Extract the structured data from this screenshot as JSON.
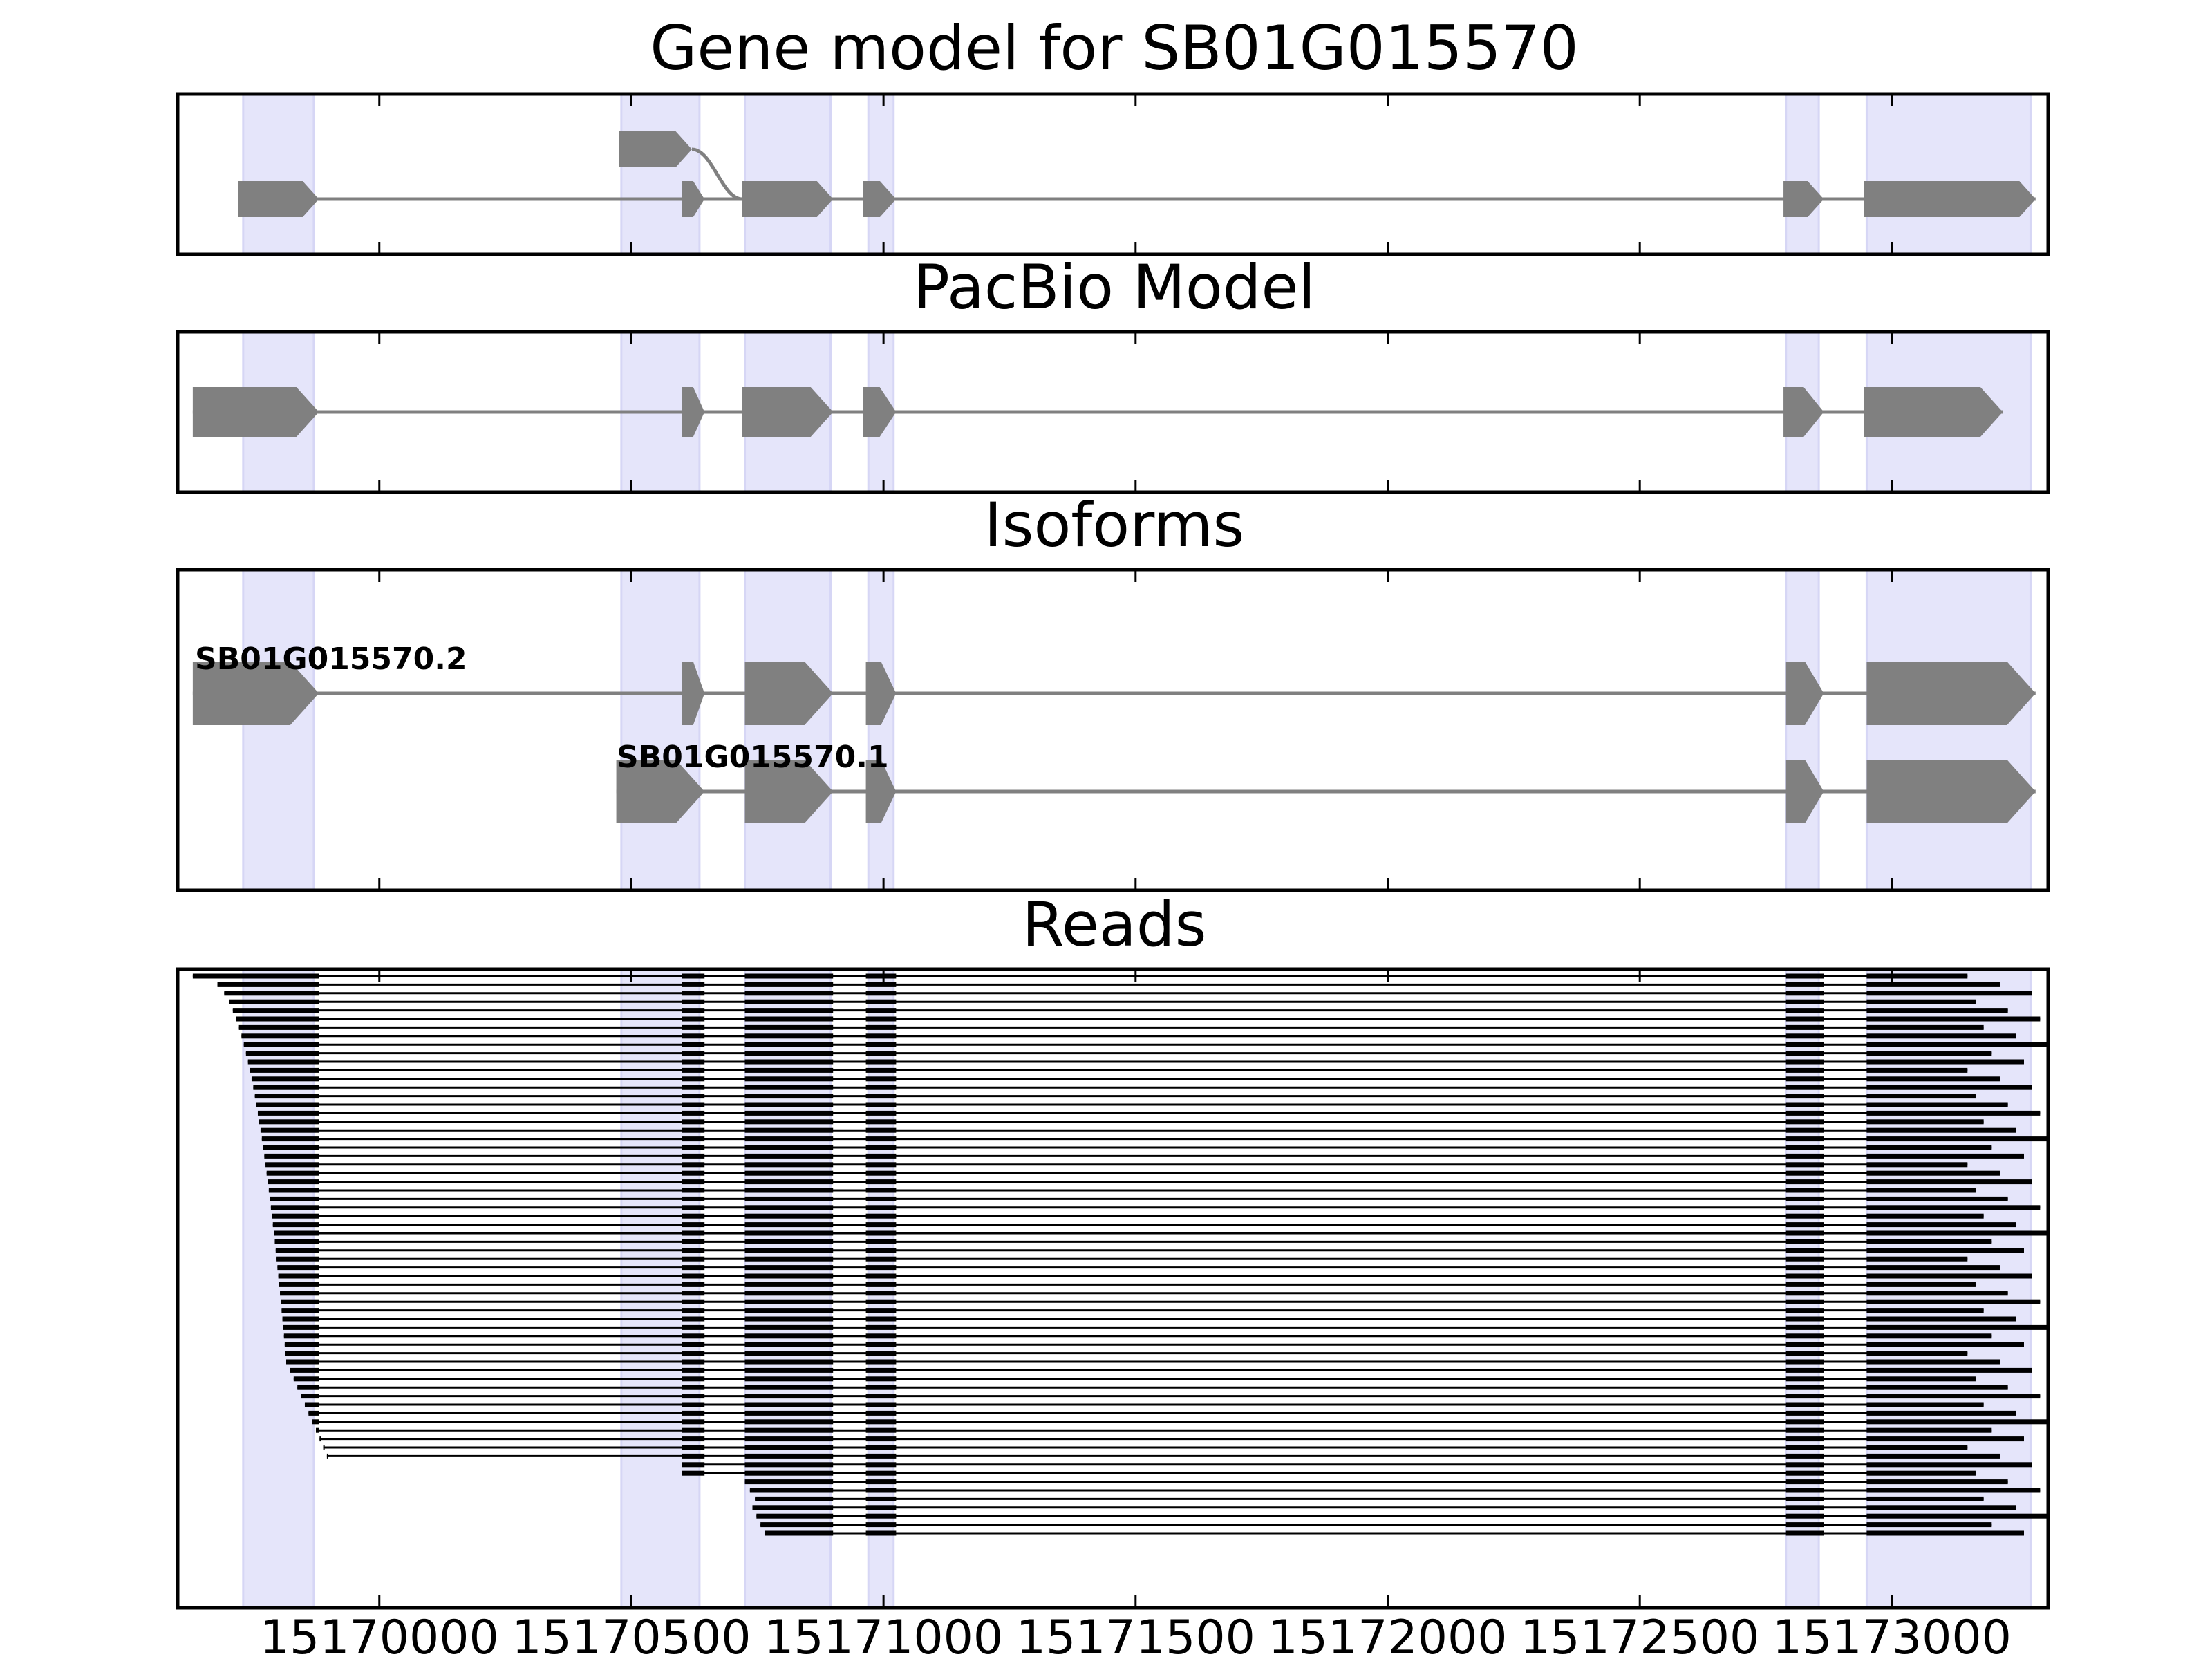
{
  "figure": {
    "panels": {
      "gene_model": {
        "title": "Gene model for SB01G015570"
      },
      "pacbio": {
        "title": "PacBio Model"
      },
      "isoforms": {
        "title": "Isoforms",
        "labels": [
          "SB01G015570.2",
          "SB01G015570.1"
        ]
      },
      "reads": {
        "title": "Reads"
      }
    },
    "x_tick_labels": [
      "15170000",
      "15170500",
      "15171000",
      "15171500",
      "15172000",
      "15172500",
      "15173000"
    ]
  },
  "chart_data": {
    "type": "gene_structure",
    "axis": {
      "xlim": [
        15169600,
        15173310
      ],
      "ticks": [
        15170000,
        15170500,
        15171000,
        15171500,
        15172000,
        15172500,
        15173000
      ]
    },
    "highlight_exons": [
      [
        15169730,
        15169870
      ],
      [
        15170480,
        15170635
      ],
      [
        15170725,
        15170895
      ],
      [
        15170970,
        15171020
      ],
      [
        15172790,
        15172855
      ],
      [
        15172950,
        15173275
      ]
    ],
    "colors": {
      "feature": "#808080",
      "highlight": "#e5e5fa",
      "read": "#000000",
      "intron": "#808080"
    },
    "gene_model": {
      "main_exons": [
        [
          15169720,
          15169880
        ],
        [
          15170600,
          15170645
        ],
        [
          15170720,
          15170900
        ],
        [
          15170960,
          15171025
        ],
        [
          15172785,
          15172865
        ],
        [
          15172945,
          15173285
        ]
      ],
      "alt_exon": [
        15170475,
        15170620
      ]
    },
    "pacbio_model": {
      "exons": [
        [
          15169630,
          15169880
        ],
        [
          15170600,
          15170645
        ],
        [
          15170720,
          15170900
        ],
        [
          15170960,
          15171025
        ],
        [
          15172785,
          15172865
        ],
        [
          15172945,
          15173220
        ]
      ]
    },
    "isoforms": [
      {
        "name": "SB01G015570.2",
        "exons": [
          [
            15169630,
            15169880
          ],
          [
            15170600,
            15170645
          ],
          [
            15170725,
            15170900
          ],
          [
            15170965,
            15171025
          ],
          [
            15172790,
            15172865
          ],
          [
            15172950,
            15173285
          ]
        ]
      },
      {
        "name": "SB01G015570.1",
        "exons": [
          [
            15170470,
            15170645
          ],
          [
            15170725,
            15170900
          ],
          [
            15170965,
            15171025
          ],
          [
            15172790,
            15172865
          ],
          [
            15172950,
            15173285
          ]
        ]
      }
    ],
    "reads": {
      "count": 66,
      "full_length_reads": 57,
      "first_start": 15169630,
      "exon_blocks": [
        [
          15170600,
          15170645
        ],
        [
          15170725,
          15170900
        ],
        [
          15170965,
          15171025
        ],
        [
          15172790,
          15172865
        ],
        [
          15172950,
          15173220
        ]
      ],
      "end_range": [
        15173150,
        15173310
      ]
    }
  }
}
